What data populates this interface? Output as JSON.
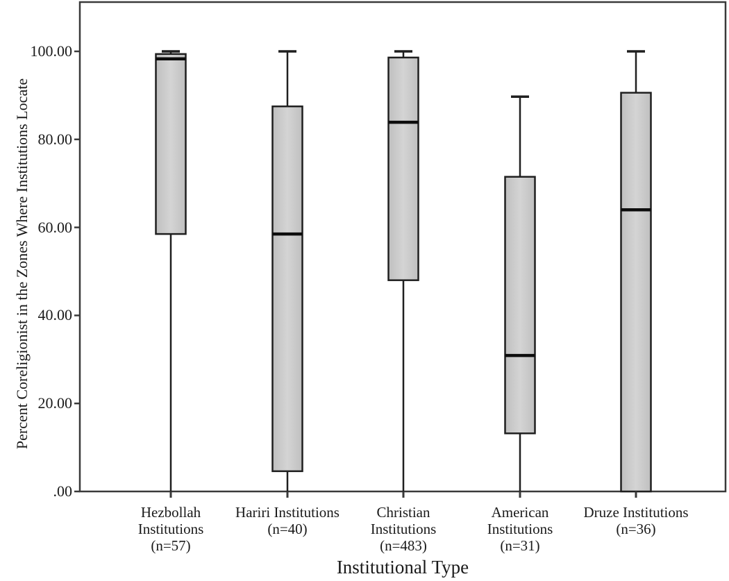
{
  "figure": {
    "background": "#ffffff",
    "frame_color": "#3a3a3a",
    "box_fill_edge": "#bfbfbf",
    "box_fill_center": "#d4d4d4",
    "box_border": "#1f1f1f",
    "median_color": "#0d0d0d",
    "text_color": "#1a1a1a"
  },
  "chart_data": {
    "type": "boxplot",
    "title": "",
    "xlabel": "Institutional Type",
    "ylabel": "Percent Coreligionist in the Zones Where Institutions Locate",
    "ylim": [
      0,
      111
    ],
    "grid": false,
    "legend_position": "none",
    "yticks": [
      {
        "value": 100,
        "label": "100.00"
      },
      {
        "value": 80,
        "label": "80.00"
      },
      {
        "value": 60,
        "label": "60.00"
      },
      {
        "value": 40,
        "label": "40.00"
      },
      {
        "value": 20,
        "label": "20.00"
      },
      {
        "value": 0,
        "label": ".00"
      }
    ],
    "series": [
      {
        "name": "Hezbollah Institutions",
        "n": 57,
        "label_lines": [
          "Hezbollah",
          "Institutions",
          "(n=57)"
        ],
        "min": 0,
        "q1": 58.5,
        "median": 98.3,
        "q3": 99.4,
        "max": 100
      },
      {
        "name": "Hariri Institutions",
        "n": 40,
        "label_lines": [
          "Hariri Institutions",
          "(n=40)"
        ],
        "min": 0,
        "q1": 4.6,
        "median": 58.5,
        "q3": 87.5,
        "max": 100
      },
      {
        "name": "Christian Institutions",
        "n": 483,
        "label_lines": [
          "Christian",
          "Institutions",
          "(n=483)"
        ],
        "min": 0,
        "q1": 48,
        "median": 83.9,
        "q3": 98.6,
        "max": 100
      },
      {
        "name": "American Institutions",
        "n": 31,
        "label_lines": [
          "American",
          "Institutions",
          "(n=31)"
        ],
        "min": 0,
        "q1": 13.2,
        "median": 30.9,
        "q3": 71.5,
        "max": 89.7
      },
      {
        "name": "Druze Institutions",
        "n": 36,
        "label_lines": [
          "Druze Institutions",
          "(n=36)"
        ],
        "min": 0,
        "q1": 0,
        "median": 64,
        "q3": 90.6,
        "max": 100
      }
    ]
  }
}
